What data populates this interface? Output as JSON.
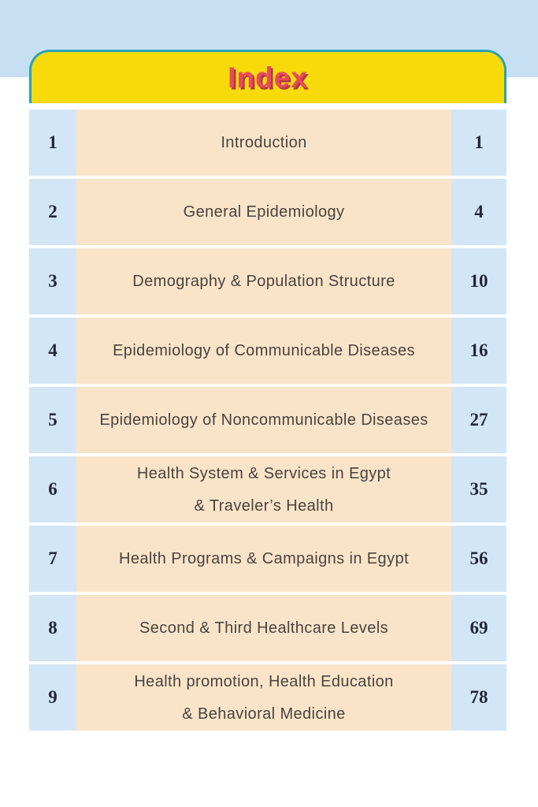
{
  "header": {
    "title": "Index"
  },
  "toc": {
    "rows": [
      {
        "chapter": "1",
        "title_lines": [
          "Introduction"
        ],
        "page": "1"
      },
      {
        "chapter": "2",
        "title_lines": [
          "General Epidemiology"
        ],
        "page": "4"
      },
      {
        "chapter": "3",
        "title_lines": [
          "Demography & Population Structure"
        ],
        "page": "10"
      },
      {
        "chapter": "4",
        "title_lines": [
          "Epidemiology of Communicable Diseases"
        ],
        "page": "16"
      },
      {
        "chapter": "5",
        "title_lines": [
          "Epidemiology of Noncommunicable Diseases"
        ],
        "page": "27"
      },
      {
        "chapter": "6",
        "title_lines": [
          "Health System & Services in Egypt",
          "& Traveler’s Health"
        ],
        "page": "35"
      },
      {
        "chapter": "7",
        "title_lines": [
          "Health Programs & Campaigns in Egypt"
        ],
        "page": "56"
      },
      {
        "chapter": "8",
        "title_lines": [
          "Second & Third Healthcare Levels"
        ],
        "page": "69"
      },
      {
        "chapter": "9",
        "title_lines": [
          "Health promotion, Health Education",
          "& Behavioral Medicine"
        ],
        "page": "78"
      }
    ]
  },
  "colors": {
    "band_blue": "#c7dff3",
    "cell_blue": "#d3e6f6",
    "peach": "#fae4c9",
    "header_yellow": "#f8da0b",
    "header_teal": "#2aa3b5",
    "title_red": "#e94b59",
    "title_red_shadow": "#ae3a49",
    "chapter_text": "#4a443d",
    "number_text": "#1f2836"
  }
}
